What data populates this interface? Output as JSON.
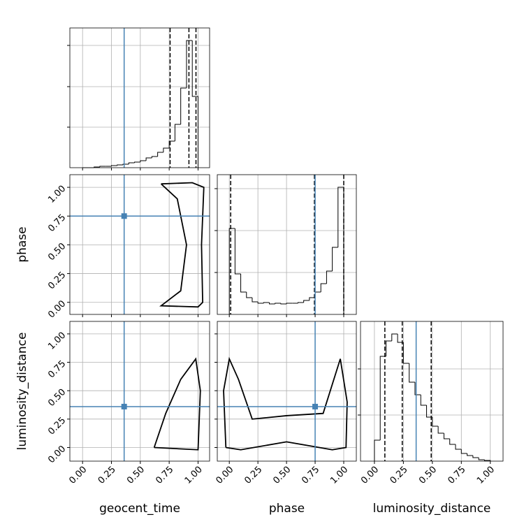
{
  "chart_data": {
    "type": "corner",
    "truth_color": "#4682b4",
    "line_color": "#000000",
    "grid": true,
    "hist_ylim": [
      0,
      1
    ],
    "parameters": [
      {
        "name": "geocent_time",
        "lim": [
          -0.11,
          1.1
        ],
        "truth": 0.36,
        "quantiles": [
          0.758,
          0.921,
          0.982
        ],
        "ticks": [
          {
            "value": 0,
            "label": "0.00"
          },
          {
            "value": 0.25,
            "label": "0.25"
          },
          {
            "value": 0.5,
            "label": "0.50"
          },
          {
            "value": 0.75,
            "label": "0.75"
          },
          {
            "value": 1,
            "label": "1.00"
          }
        ],
        "hist_yticks": [
          0.29,
          0.58,
          0.875
        ],
        "bins": [
          0,
          0.05,
          0.1,
          0.15,
          0.2,
          0.25,
          0.3,
          0.35,
          0.4,
          0.45,
          0.5,
          0.55,
          0.6,
          0.65,
          0.7,
          0.75,
          0.8,
          0.85,
          0.9,
          0.95,
          1.0
        ],
        "counts": [
          0,
          0,
          0.005,
          0.01,
          0.01,
          0.015,
          0.02,
          0.025,
          0.035,
          0.04,
          0.05,
          0.07,
          0.08,
          0.11,
          0.14,
          0.19,
          0.31,
          0.57,
          0.91,
          0.51
        ],
        "contours": []
      },
      {
        "name": "phase",
        "lim": [
          -0.105,
          1.11
        ],
        "truth": 0.75,
        "quantiles": [
          0.012,
          0.744,
          1.0
        ],
        "ticks": [
          {
            "value": 0,
            "label": "0.00"
          },
          {
            "value": 0.25,
            "label": "0.25"
          },
          {
            "value": 0.5,
            "label": "0.50"
          },
          {
            "value": 0.75,
            "label": "0.75"
          },
          {
            "value": 1,
            "label": "1.00"
          }
        ],
        "hist_yticks": [
          0.3,
          0.6,
          0.9
        ],
        "bins": [
          0,
          0.05,
          0.1,
          0.15,
          0.2,
          0.25,
          0.3,
          0.35,
          0.4,
          0.45,
          0.5,
          0.55,
          0.6,
          0.65,
          0.7,
          0.75,
          0.8,
          0.85,
          0.9,
          0.95,
          1.0
        ],
        "counts": [
          0.615,
          0.29,
          0.16,
          0.12,
          0.09,
          0.08,
          0.085,
          0.075,
          0.08,
          0.075,
          0.08,
          0.08,
          0.085,
          0.1,
          0.12,
          0.16,
          0.22,
          0.31,
          0.48,
          0.91
        ],
        "contours": [
          {
            "x": [
              0.68,
              0.95,
              1.05,
              1.03,
              1.04,
              1.0,
              0.68,
              0.85,
              0.9,
              0.82,
              0.68
            ],
            "y": [
              1.03,
              1.04,
              1.0,
              0.5,
              0.0,
              -0.04,
              -0.03,
              0.1,
              0.5,
              0.9,
              1.03
            ]
          }
        ]
      },
      {
        "name": "luminosity_distance",
        "lim": [
          -0.12,
          1.11
        ],
        "truth": 0.36,
        "quantiles": [
          0.09,
          0.24,
          0.49
        ],
        "ticks": [
          {
            "value": 0,
            "label": "0.00"
          },
          {
            "value": 0.25,
            "label": "0.25"
          },
          {
            "value": 0.5,
            "label": "0.50"
          },
          {
            "value": 0.75,
            "label": "0.75"
          },
          {
            "value": 1,
            "label": "1.00"
          }
        ],
        "hist_yticks": [
          0.33,
          0.66
        ],
        "bins": [
          0,
          0.05,
          0.1,
          0.15,
          0.2,
          0.25,
          0.3,
          0.35,
          0.4,
          0.45,
          0.5,
          0.55,
          0.6,
          0.65,
          0.7,
          0.75,
          0.8,
          0.85,
          0.9,
          0.95,
          1.0
        ],
        "counts": [
          0.15,
          0.75,
          0.86,
          0.91,
          0.85,
          0.7,
          0.565,
          0.475,
          0.4,
          0.315,
          0.25,
          0.2,
          0.16,
          0.12,
          0.085,
          0.055,
          0.04,
          0.025,
          0.01,
          0.005
        ],
        "contours": [
          {
            "x": [
              0.62,
              0.72,
              0.85,
              0.98,
              1.02,
              1.0,
              0.62
            ],
            "y": [
              0.0,
              0.3,
              0.6,
              0.78,
              0.5,
              -0.02,
              0.0
            ]
          },
          {
            "x": [
              -0.03,
              -0.05,
              0.0,
              0.08,
              0.2,
              0.5,
              0.82,
              0.97,
              1.03,
              1.02,
              0.9,
              0.5,
              0.1,
              -0.03
            ],
            "y": [
              0.0,
              0.5,
              0.78,
              0.6,
              0.25,
              0.28,
              0.3,
              0.78,
              0.4,
              0.0,
              -0.02,
              0.05,
              -0.02,
              0.0
            ]
          }
        ]
      }
    ]
  }
}
